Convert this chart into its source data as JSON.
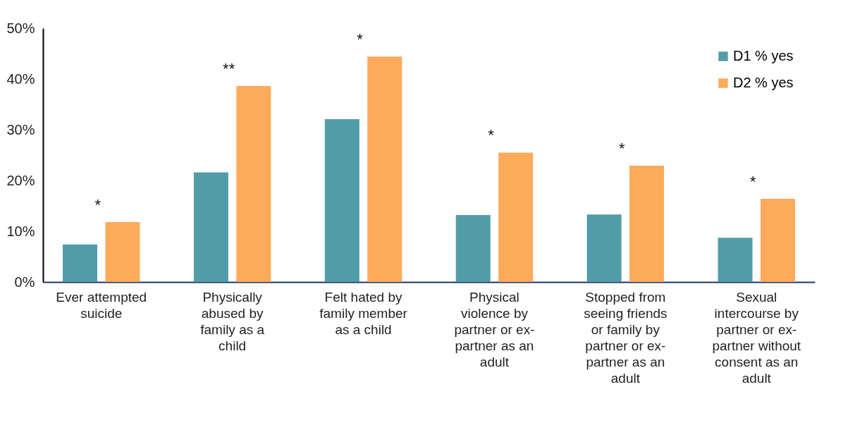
{
  "chart_data": {
    "type": "bar",
    "categories": [
      "Ever attempted suicide",
      "Physically abused by family as a child",
      "Felt hated by family member as a child",
      "Physical violence by partner or ex-partner as an adult",
      "Stopped from seeing friends or family by partner or ex-partner as an adult",
      "Sexual intercourse by partner or ex-partner without consent as an adult"
    ],
    "series": [
      {
        "name": "D1 % yes",
        "color": "#519da7",
        "values": [
          7.4,
          21.6,
          32.1,
          13.2,
          13.3,
          8.7
        ]
      },
      {
        "name": "D2 % yes",
        "color": "#fdaa5b",
        "values": [
          11.8,
          38.6,
          44.4,
          25.5,
          22.9,
          16.4
        ]
      }
    ],
    "ylim": [
      0,
      50
    ],
    "yticks": [
      {
        "value": 0,
        "label": "0%"
      },
      {
        "value": 10,
        "label": "10%"
      },
      {
        "value": 20,
        "label": "20%"
      },
      {
        "value": 30,
        "label": "30%"
      },
      {
        "value": 40,
        "label": "40%"
      },
      {
        "value": 50,
        "label": "50%"
      }
    ],
    "grid": false,
    "legend": "top right",
    "annotations": [
      "*",
      "**",
      "*",
      "*",
      "*",
      "*"
    ]
  }
}
